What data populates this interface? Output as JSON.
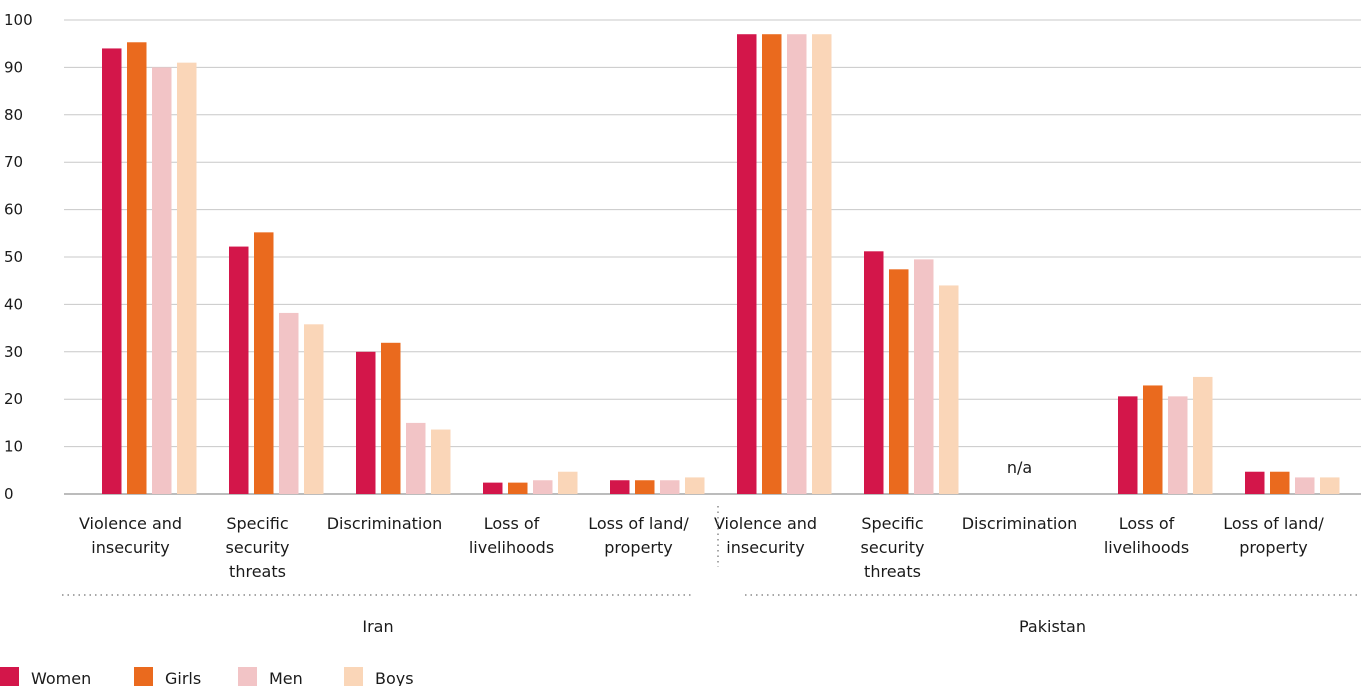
{
  "chart_data": {
    "type": "bar",
    "title": "",
    "xlabel": "",
    "ylabel": "",
    "ylim": [
      0,
      100
    ],
    "yticks": [
      "0",
      "10",
      "20",
      "30",
      "40",
      "50",
      "60",
      "70",
      "80",
      "90",
      "100"
    ],
    "grid": true,
    "legend_position": "bottom-left",
    "series": [
      {
        "name": "Women",
        "color": "#d3164a"
      },
      {
        "name": "Girls",
        "color": "#ea6a1e"
      },
      {
        "name": "Men",
        "color": "#f2c4c6"
      },
      {
        "name": "Boys",
        "color": "#fad6b8"
      }
    ],
    "groups": [
      {
        "name": "Iran",
        "categories": [
          {
            "label": [
              "Violence and",
              "insecurity"
            ],
            "values": [
              94,
              95.3,
              90,
              91
            ]
          },
          {
            "label": [
              "Specific",
              "security",
              "threats"
            ],
            "values": [
              52.2,
              55.2,
              38.2,
              35.8
            ]
          },
          {
            "label": [
              "Discrimination"
            ],
            "values": [
              30,
              31.9,
              15,
              13.6
            ]
          },
          {
            "label": [
              "Loss of",
              "livelihoods"
            ],
            "values": [
              2.4,
              2.4,
              2.9,
              4.7
            ]
          },
          {
            "label": [
              "Loss of land/",
              "property"
            ],
            "values": [
              2.9,
              2.9,
              2.9,
              3.5
            ]
          }
        ]
      },
      {
        "name": "Pakistan",
        "categories": [
          {
            "label": [
              "Violence and",
              "insecurity"
            ],
            "values": [
              97,
              97,
              97,
              97
            ]
          },
          {
            "label": [
              "Specific",
              "security",
              "threats"
            ],
            "values": [
              51.2,
              47.4,
              49.5,
              44
            ]
          },
          {
            "label": [
              "Discrimination"
            ],
            "values": null,
            "note": "n/a"
          },
          {
            "label": [
              "Loss of",
              "livelihoods"
            ],
            "values": [
              20.6,
              22.9,
              20.6,
              24.7
            ]
          },
          {
            "label": [
              "Loss of land/",
              "property"
            ],
            "values": [
              4.7,
              4.7,
              3.5,
              3.5
            ]
          }
        ]
      }
    ]
  }
}
